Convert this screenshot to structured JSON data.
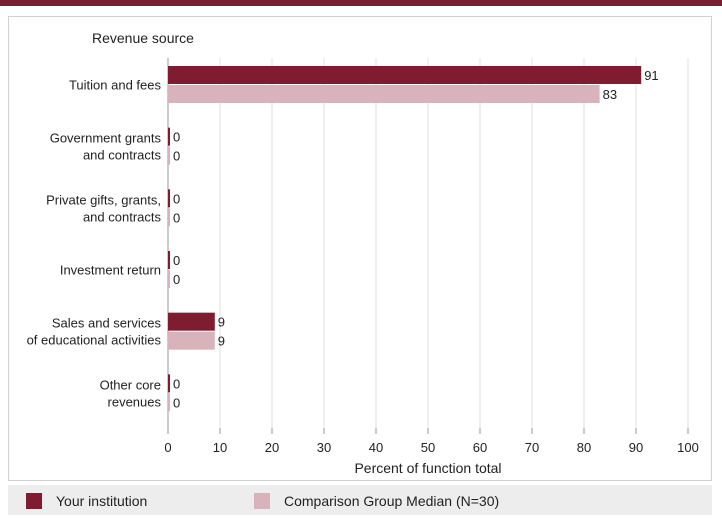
{
  "chart_data": {
    "type": "bar",
    "orientation": "horizontal",
    "category_axis_title": "Revenue source",
    "categories": [
      [
        "Tuition and fees"
      ],
      [
        "Government grants",
        "and contracts"
      ],
      [
        "Private gifts, grants,",
        "and contracts"
      ],
      [
        "Investment return"
      ],
      [
        "Sales and services",
        "of educational activities"
      ],
      [
        "Other core",
        "revenues"
      ]
    ],
    "series": [
      {
        "name": "Your institution",
        "values": [
          91,
          0,
          0,
          0,
          9,
          0
        ],
        "color": "#801c30"
      },
      {
        "name": "Comparison Group Median (N=30)",
        "values": [
          83,
          0,
          0,
          0,
          9,
          0
        ],
        "color": "#d9b3bb"
      }
    ],
    "xlabel": "Percent of function total",
    "xlim": [
      0,
      100
    ],
    "xticks": [
      0,
      10,
      20,
      30,
      40,
      50,
      60,
      70,
      80,
      90,
      100
    ],
    "data_labels": true,
    "grid": "vertical",
    "grid_color": "#e0e0e0",
    "legend_position": "bottom"
  },
  "legend": {
    "items": [
      {
        "label": "Your institution",
        "color": "#801c30"
      },
      {
        "label": "Comparison Group Median (N=30)",
        "color": "#d9b3bb"
      }
    ]
  }
}
